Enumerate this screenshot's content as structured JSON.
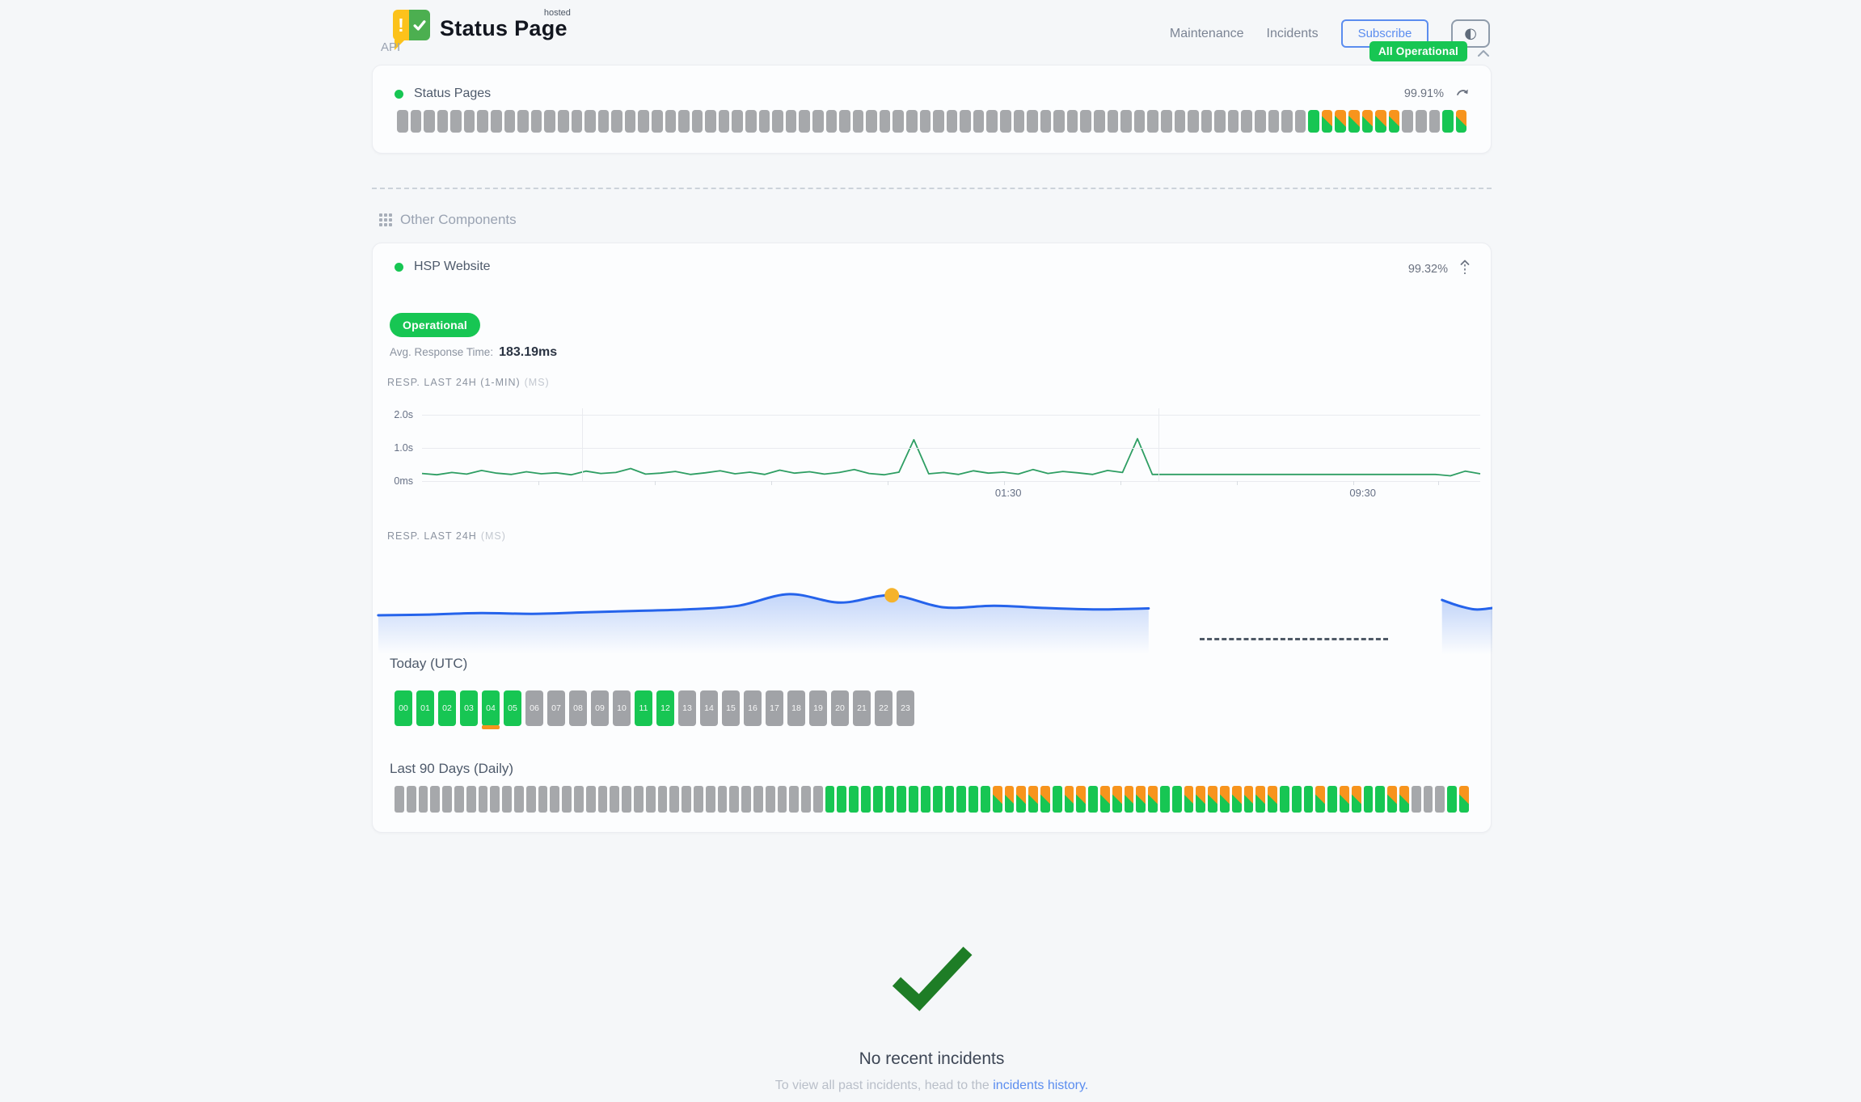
{
  "colors": {
    "green": "#17c653",
    "orange": "#f7941d",
    "gray_bar": "#a6a8ab",
    "blue": "#2563eb",
    "link": "#5b8def",
    "marker": "#f5b32b",
    "check": "#1e7d26"
  },
  "header": {
    "logo_exclamation": "!",
    "logo_title": "Status Page",
    "logo_superscript": "hosted",
    "nav": [
      {
        "label": "Maintenance"
      },
      {
        "label": "Incidents"
      }
    ],
    "subscribe_label": "Subscribe",
    "theme_toggle_glyph": "◐",
    "status_badge": "All Operational"
  },
  "api_section": {
    "title": "API",
    "component_name": "Status Pages",
    "uptime_percent": "99.91%",
    "bars": "ggggggggggggggggggggggggggggggggggggggggggggggggggggggggggggggggggggummmmmmgggum"
  },
  "other_section": {
    "title": "Other Components",
    "component_name": "HSP Website",
    "uptime_percent": "99.32%",
    "status_label": "Operational",
    "avg_response_label": "Avg. Response Time:",
    "avg_response_value": "183.19ms",
    "today_title": "Today (UTC)",
    "hours": [
      {
        "label": "00",
        "state": "up"
      },
      {
        "label": "01",
        "state": "up"
      },
      {
        "label": "02",
        "state": "up"
      },
      {
        "label": "03",
        "state": "up"
      },
      {
        "label": "04",
        "state": "up",
        "degraded": true
      },
      {
        "label": "05",
        "state": "up"
      },
      {
        "label": "06",
        "state": "idle"
      },
      {
        "label": "07",
        "state": "idle"
      },
      {
        "label": "08",
        "state": "idle"
      },
      {
        "label": "09",
        "state": "idle"
      },
      {
        "label": "10",
        "state": "idle"
      },
      {
        "label": "11",
        "state": "up"
      },
      {
        "label": "12",
        "state": "up"
      },
      {
        "label": "13",
        "state": "idle"
      },
      {
        "label": "14",
        "state": "idle"
      },
      {
        "label": "15",
        "state": "idle"
      },
      {
        "label": "16",
        "state": "idle"
      },
      {
        "label": "17",
        "state": "idle"
      },
      {
        "label": "18",
        "state": "idle"
      },
      {
        "label": "19",
        "state": "idle"
      },
      {
        "label": "20",
        "state": "idle"
      },
      {
        "label": "21",
        "state": "idle"
      },
      {
        "label": "22",
        "state": "idle"
      },
      {
        "label": "23",
        "state": "idle"
      }
    ],
    "last90_title": "Last 90 Days (Daily)",
    "bars": "gggggggggggggggggggggggggggggggggggguuuuuuuuuuuuuummmmmummummmmmuummmmmmmmuuumummuummgggum"
  },
  "incidents": {
    "title": "No recent incidents",
    "subtext_prefix": "To view all past incidents, head to the ",
    "link_label": "incidents history."
  },
  "chart_data": [
    {
      "type": "line",
      "title": "RESP. LAST 24H (1-MIN)",
      "unit": "(MS)",
      "ylim": [
        0,
        2200
      ],
      "y_ticks": [
        {
          "label": "2.0s",
          "value": 2000
        },
        {
          "label": "1.0s",
          "value": 1000
        },
        {
          "label": "0ms",
          "value": 0
        }
      ],
      "x_ticks": [
        {
          "label": "01:30",
          "pos": 0.554
        },
        {
          "label": "09:30",
          "pos": 0.889
        }
      ],
      "grid_x": [
        0.151,
        0.696
      ],
      "minor_ticks": [
        0.11,
        0.22,
        0.33,
        0.44,
        0.55,
        0.66,
        0.77,
        0.88,
        0.96
      ],
      "line_color": "#2e9e63",
      "values": [
        230,
        190,
        260,
        210,
        320,
        240,
        200,
        280,
        220,
        250,
        190,
        300,
        230,
        260,
        380,
        210,
        240,
        290,
        200,
        250,
        310,
        220,
        270,
        200,
        330,
        240,
        280,
        210,
        260,
        350,
        230,
        190,
        270,
        1250,
        220,
        260,
        200,
        310,
        240,
        270,
        210,
        350,
        230,
        290,
        250,
        200,
        320,
        260,
        1280,
        200,
        200,
        200,
        200,
        200,
        200,
        200,
        200,
        200,
        200,
        200,
        200,
        200,
        200,
        200,
        200,
        200,
        200,
        200,
        200,
        160,
        300,
        220
      ]
    },
    {
      "type": "area",
      "title": "RESP. LAST 24H",
      "unit": "(MS)",
      "line_color": "#2563eb",
      "marker": {
        "segment": 0,
        "index": 10,
        "color": "#f5b32b"
      },
      "gap": {
        "from": 0.739,
        "to": 0.907
      },
      "segments": [
        {
          "x_start": 0.005,
          "x_end": 0.693,
          "values": [
            170,
            172,
            176,
            174,
            178,
            182,
            186,
            196,
            228,
            205,
            225,
            192,
            196,
            190,
            186,
            189
          ]
        },
        {
          "x_start": 0.955,
          "x_end": 1.0,
          "values": [
            212,
            196,
            186,
            190
          ]
        }
      ]
    }
  ]
}
